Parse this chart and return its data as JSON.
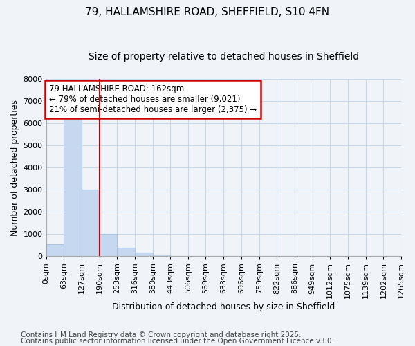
{
  "title": "79, HALLAMSHIRE ROAD, SHEFFIELD, S10 4FN",
  "subtitle": "Size of property relative to detached houses in Sheffield",
  "xlabel": "Distribution of detached houses by size in Sheffield",
  "ylabel": "Number of detached properties",
  "bin_edges": [
    0,
    63,
    127,
    190,
    253,
    316,
    380,
    443,
    506,
    569,
    633,
    696,
    759,
    822,
    886,
    949,
    1012,
    1075,
    1139,
    1202,
    1265
  ],
  "bin_labels": [
    "0sqm",
    "63sqm",
    "127sqm",
    "190sqm",
    "253sqm",
    "316sqm",
    "380sqm",
    "443sqm",
    "506sqm",
    "569sqm",
    "633sqm",
    "696sqm",
    "759sqm",
    "822sqm",
    "886sqm",
    "949sqm",
    "1012sqm",
    "1075sqm",
    "1139sqm",
    "1202sqm",
    "1265sqm"
  ],
  "bar_heights": [
    550,
    6480,
    3000,
    1000,
    380,
    160,
    60,
    0,
    0,
    0,
    0,
    0,
    0,
    0,
    0,
    0,
    0,
    0,
    0,
    0
  ],
  "bar_color": "#c5d8f0",
  "bar_edge_color": "#a8c4e0",
  "property_size": 162,
  "vline_color": "#cc0000",
  "vline_x": 190,
  "annotation_text": "79 HALLAMSHIRE ROAD: 162sqm\n← 79% of detached houses are smaller (9,021)\n21% of semi-detached houses are larger (2,375) →",
  "annotation_box_color": "#cc0000",
  "annotation_box_bg": "#ffffff",
  "ylim": [
    0,
    8000
  ],
  "yticks": [
    0,
    1000,
    2000,
    3000,
    4000,
    5000,
    6000,
    7000,
    8000
  ],
  "grid_color": "#c8d8e8",
  "background_color": "#f0f4f8",
  "plot_bg_color": "#f0f4f8",
  "footnote1": "Contains HM Land Registry data © Crown copyright and database right 2025.",
  "footnote2": "Contains public sector information licensed under the Open Government Licence v3.0.",
  "title_fontsize": 11,
  "subtitle_fontsize": 10,
  "label_fontsize": 9,
  "tick_fontsize": 8,
  "footnote_fontsize": 7.5,
  "annot_fontsize": 8.5
}
